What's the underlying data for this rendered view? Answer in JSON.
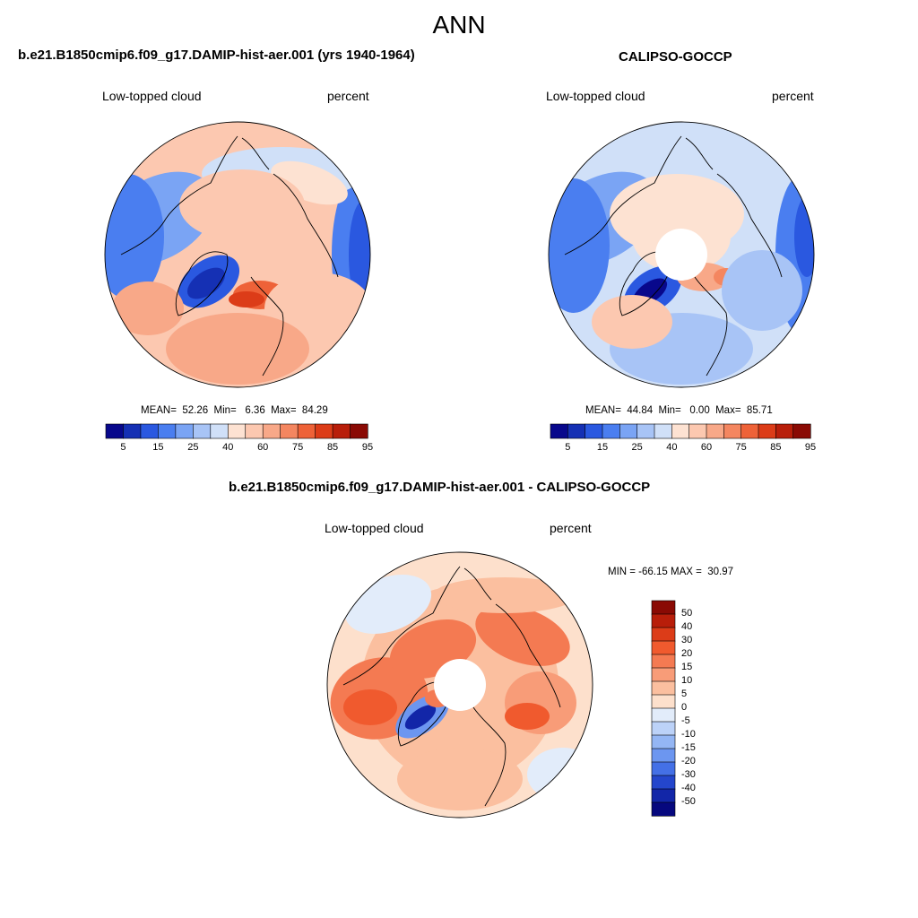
{
  "title": "ANN",
  "panels": [
    {
      "title": "b.e21.B1850cmip6.f09_g17.DAMIP-hist-aer.001 (yrs 1940-1964)",
      "left_label": "Low-topped cloud",
      "right_label": "percent",
      "stats": "MEAN=  52.26  Min=   6.36  Max=  84.29"
    },
    {
      "title": "CALIPSO-GOCCP",
      "left_label": "Low-topped cloud",
      "right_label": "percent",
      "stats": "MEAN=  44.84  Min=   0.00  Max=  85.71"
    },
    {
      "title": "b.e21.B1850cmip6.f09_g17.DAMIP-hist-aer.001 - CALIPSO-GOCCP",
      "left_label": "Low-topped cloud",
      "right_label": "percent",
      "stats": "MIN = -66.15 MAX =  30.97"
    }
  ],
  "colorbar_abs": {
    "labels": [
      "5",
      "15",
      "25",
      "40",
      "60",
      "75",
      "85",
      "95"
    ],
    "colors": [
      "#08088c",
      "#1530b4",
      "#2a58e0",
      "#4a7ef0",
      "#7aa4f4",
      "#a8c4f6",
      "#d0e0f8",
      "#fde2d2",
      "#fcc8b0",
      "#f8a888",
      "#f48660",
      "#ee6238",
      "#dc3c18",
      "#b81e0a",
      "#8a0a04"
    ]
  },
  "colorbar_diff": {
    "labels": [
      "50",
      "40",
      "30",
      "20",
      "15",
      "10",
      "5",
      "0",
      "-5",
      "-10",
      "-15",
      "-20",
      "-30",
      "-40",
      "-50"
    ],
    "colors": [
      "#8a0a04",
      "#b81e0a",
      "#dc3c18",
      "#f05a2e",
      "#f47a52",
      "#f89c78",
      "#fbbf9f",
      "#fde0cc",
      "#e2ecfa",
      "#bcd2f8",
      "#94b6f4",
      "#6c96f0",
      "#4470e6",
      "#2446cc",
      "#1226a8",
      "#06087e"
    ]
  }
}
